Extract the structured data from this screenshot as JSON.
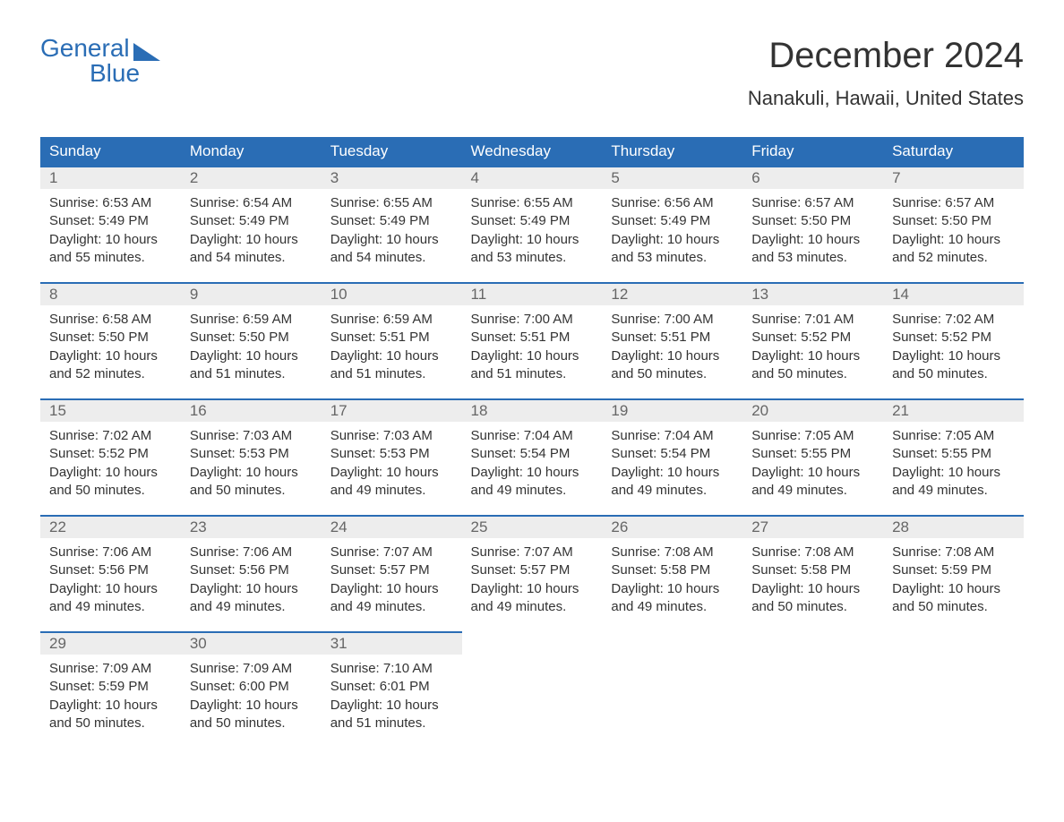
{
  "logo": {
    "line1": "General",
    "line2": "Blue"
  },
  "title": "December 2024",
  "location": "Nanakuli, Hawaii, United States",
  "colors": {
    "header_bg": "#2a6db5",
    "header_text": "#ffffff",
    "daynum_bg": "#ededed",
    "daynum_text": "#666666",
    "body_text": "#333333",
    "row_border": "#2a6db5",
    "logo_color": "#2a6db5",
    "page_bg": "#ffffff"
  },
  "day_headers": [
    "Sunday",
    "Monday",
    "Tuesday",
    "Wednesday",
    "Thursday",
    "Friday",
    "Saturday"
  ],
  "weeks": [
    [
      {
        "n": "1",
        "sunrise": "Sunrise: 6:53 AM",
        "sunset": "Sunset: 5:49 PM",
        "day1": "Daylight: 10 hours",
        "day2": "and 55 minutes."
      },
      {
        "n": "2",
        "sunrise": "Sunrise: 6:54 AM",
        "sunset": "Sunset: 5:49 PM",
        "day1": "Daylight: 10 hours",
        "day2": "and 54 minutes."
      },
      {
        "n": "3",
        "sunrise": "Sunrise: 6:55 AM",
        "sunset": "Sunset: 5:49 PM",
        "day1": "Daylight: 10 hours",
        "day2": "and 54 minutes."
      },
      {
        "n": "4",
        "sunrise": "Sunrise: 6:55 AM",
        "sunset": "Sunset: 5:49 PM",
        "day1": "Daylight: 10 hours",
        "day2": "and 53 minutes."
      },
      {
        "n": "5",
        "sunrise": "Sunrise: 6:56 AM",
        "sunset": "Sunset: 5:49 PM",
        "day1": "Daylight: 10 hours",
        "day2": "and 53 minutes."
      },
      {
        "n": "6",
        "sunrise": "Sunrise: 6:57 AM",
        "sunset": "Sunset: 5:50 PM",
        "day1": "Daylight: 10 hours",
        "day2": "and 53 minutes."
      },
      {
        "n": "7",
        "sunrise": "Sunrise: 6:57 AM",
        "sunset": "Sunset: 5:50 PM",
        "day1": "Daylight: 10 hours",
        "day2": "and 52 minutes."
      }
    ],
    [
      {
        "n": "8",
        "sunrise": "Sunrise: 6:58 AM",
        "sunset": "Sunset: 5:50 PM",
        "day1": "Daylight: 10 hours",
        "day2": "and 52 minutes."
      },
      {
        "n": "9",
        "sunrise": "Sunrise: 6:59 AM",
        "sunset": "Sunset: 5:50 PM",
        "day1": "Daylight: 10 hours",
        "day2": "and 51 minutes."
      },
      {
        "n": "10",
        "sunrise": "Sunrise: 6:59 AM",
        "sunset": "Sunset: 5:51 PM",
        "day1": "Daylight: 10 hours",
        "day2": "and 51 minutes."
      },
      {
        "n": "11",
        "sunrise": "Sunrise: 7:00 AM",
        "sunset": "Sunset: 5:51 PM",
        "day1": "Daylight: 10 hours",
        "day2": "and 51 minutes."
      },
      {
        "n": "12",
        "sunrise": "Sunrise: 7:00 AM",
        "sunset": "Sunset: 5:51 PM",
        "day1": "Daylight: 10 hours",
        "day2": "and 50 minutes."
      },
      {
        "n": "13",
        "sunrise": "Sunrise: 7:01 AM",
        "sunset": "Sunset: 5:52 PM",
        "day1": "Daylight: 10 hours",
        "day2": "and 50 minutes."
      },
      {
        "n": "14",
        "sunrise": "Sunrise: 7:02 AM",
        "sunset": "Sunset: 5:52 PM",
        "day1": "Daylight: 10 hours",
        "day2": "and 50 minutes."
      }
    ],
    [
      {
        "n": "15",
        "sunrise": "Sunrise: 7:02 AM",
        "sunset": "Sunset: 5:52 PM",
        "day1": "Daylight: 10 hours",
        "day2": "and 50 minutes."
      },
      {
        "n": "16",
        "sunrise": "Sunrise: 7:03 AM",
        "sunset": "Sunset: 5:53 PM",
        "day1": "Daylight: 10 hours",
        "day2": "and 50 minutes."
      },
      {
        "n": "17",
        "sunrise": "Sunrise: 7:03 AM",
        "sunset": "Sunset: 5:53 PM",
        "day1": "Daylight: 10 hours",
        "day2": "and 49 minutes."
      },
      {
        "n": "18",
        "sunrise": "Sunrise: 7:04 AM",
        "sunset": "Sunset: 5:54 PM",
        "day1": "Daylight: 10 hours",
        "day2": "and 49 minutes."
      },
      {
        "n": "19",
        "sunrise": "Sunrise: 7:04 AM",
        "sunset": "Sunset: 5:54 PM",
        "day1": "Daylight: 10 hours",
        "day2": "and 49 minutes."
      },
      {
        "n": "20",
        "sunrise": "Sunrise: 7:05 AM",
        "sunset": "Sunset: 5:55 PM",
        "day1": "Daylight: 10 hours",
        "day2": "and 49 minutes."
      },
      {
        "n": "21",
        "sunrise": "Sunrise: 7:05 AM",
        "sunset": "Sunset: 5:55 PM",
        "day1": "Daylight: 10 hours",
        "day2": "and 49 minutes."
      }
    ],
    [
      {
        "n": "22",
        "sunrise": "Sunrise: 7:06 AM",
        "sunset": "Sunset: 5:56 PM",
        "day1": "Daylight: 10 hours",
        "day2": "and 49 minutes."
      },
      {
        "n": "23",
        "sunrise": "Sunrise: 7:06 AM",
        "sunset": "Sunset: 5:56 PM",
        "day1": "Daylight: 10 hours",
        "day2": "and 49 minutes."
      },
      {
        "n": "24",
        "sunrise": "Sunrise: 7:07 AM",
        "sunset": "Sunset: 5:57 PM",
        "day1": "Daylight: 10 hours",
        "day2": "and 49 minutes."
      },
      {
        "n": "25",
        "sunrise": "Sunrise: 7:07 AM",
        "sunset": "Sunset: 5:57 PM",
        "day1": "Daylight: 10 hours",
        "day2": "and 49 minutes."
      },
      {
        "n": "26",
        "sunrise": "Sunrise: 7:08 AM",
        "sunset": "Sunset: 5:58 PM",
        "day1": "Daylight: 10 hours",
        "day2": "and 49 minutes."
      },
      {
        "n": "27",
        "sunrise": "Sunrise: 7:08 AM",
        "sunset": "Sunset: 5:58 PM",
        "day1": "Daylight: 10 hours",
        "day2": "and 50 minutes."
      },
      {
        "n": "28",
        "sunrise": "Sunrise: 7:08 AM",
        "sunset": "Sunset: 5:59 PM",
        "day1": "Daylight: 10 hours",
        "day2": "and 50 minutes."
      }
    ],
    [
      {
        "n": "29",
        "sunrise": "Sunrise: 7:09 AM",
        "sunset": "Sunset: 5:59 PM",
        "day1": "Daylight: 10 hours",
        "day2": "and 50 minutes."
      },
      {
        "n": "30",
        "sunrise": "Sunrise: 7:09 AM",
        "sunset": "Sunset: 6:00 PM",
        "day1": "Daylight: 10 hours",
        "day2": "and 50 minutes."
      },
      {
        "n": "31",
        "sunrise": "Sunrise: 7:10 AM",
        "sunset": "Sunset: 6:01 PM",
        "day1": "Daylight: 10 hours",
        "day2": "and 51 minutes."
      },
      null,
      null,
      null,
      null
    ]
  ]
}
